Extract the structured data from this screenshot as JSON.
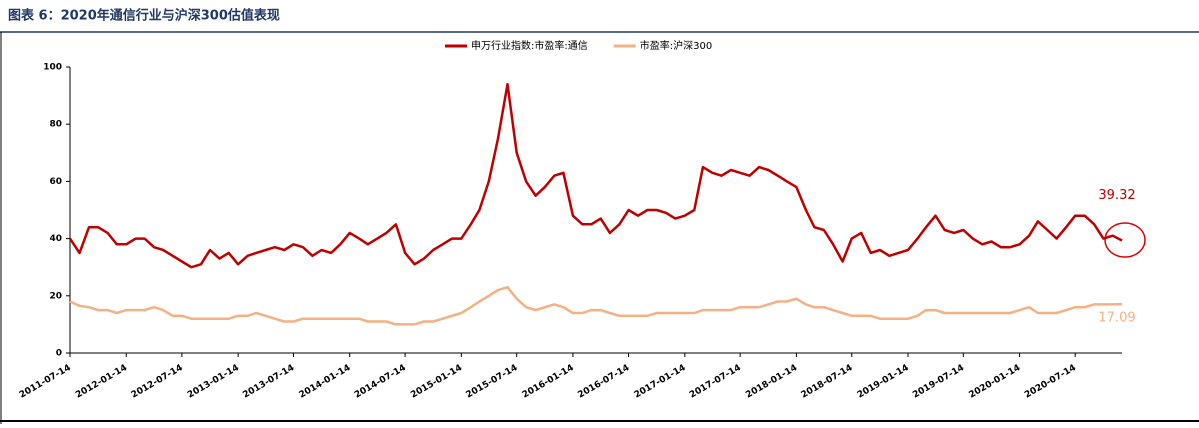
{
  "chart_data": {
    "type": "line",
    "title": "图表 6：2020年通信行业与沪深300估值表现",
    "x": [
      "2011-07-14",
      "2011-08-14",
      "2011-09-14",
      "2011-10-14",
      "2011-11-14",
      "2011-12-14",
      "2012-01-14",
      "2012-02-14",
      "2012-03-14",
      "2012-04-14",
      "2012-05-14",
      "2012-06-14",
      "2012-07-14",
      "2012-08-14",
      "2012-09-14",
      "2012-10-14",
      "2012-11-14",
      "2012-12-14",
      "2013-01-14",
      "2013-02-14",
      "2013-03-14",
      "2013-04-14",
      "2013-05-14",
      "2013-06-14",
      "2013-07-14",
      "2013-08-14",
      "2013-09-14",
      "2013-10-14",
      "2013-11-14",
      "2013-12-14",
      "2014-01-14",
      "2014-02-14",
      "2014-03-14",
      "2014-04-14",
      "2014-05-14",
      "2014-06-14",
      "2014-07-14",
      "2014-08-14",
      "2014-09-14",
      "2014-10-14",
      "2014-11-14",
      "2014-12-14",
      "2015-01-14",
      "2015-02-14",
      "2015-03-14",
      "2015-04-14",
      "2015-05-14",
      "2015-06-14",
      "2015-07-14",
      "2015-08-14",
      "2015-09-14",
      "2015-10-14",
      "2015-11-14",
      "2015-12-14",
      "2016-01-14",
      "2016-02-14",
      "2016-03-14",
      "2016-04-14",
      "2016-05-14",
      "2016-06-14",
      "2016-07-14",
      "2016-08-14",
      "2016-09-14",
      "2016-10-14",
      "2016-11-14",
      "2016-12-14",
      "2017-01-14",
      "2017-02-14",
      "2017-03-14",
      "2017-04-14",
      "2017-05-14",
      "2017-06-14",
      "2017-07-14",
      "2017-08-14",
      "2017-09-14",
      "2017-10-14",
      "2017-11-14",
      "2017-12-14",
      "2018-01-14",
      "2018-02-14",
      "2018-03-14",
      "2018-04-14",
      "2018-05-14",
      "2018-06-14",
      "2018-07-14",
      "2018-08-14",
      "2018-09-14",
      "2018-10-14",
      "2018-11-14",
      "2018-12-14",
      "2019-01-14",
      "2019-02-14",
      "2019-03-14",
      "2019-04-14",
      "2019-05-14",
      "2019-06-14",
      "2019-07-14",
      "2019-08-14",
      "2019-09-14",
      "2019-10-14",
      "2019-11-14",
      "2019-12-14",
      "2020-01-14",
      "2020-02-14",
      "2020-03-14",
      "2020-04-14",
      "2020-05-14",
      "2020-06-14",
      "2020-07-14",
      "2020-08-14",
      "2020-09-14",
      "2020-10-14",
      "2020-11-14",
      "2020-12-14"
    ],
    "series": [
      {
        "name": "申万行业指数:市盈率:通信",
        "color": "#c00000",
        "values": [
          40,
          35,
          44,
          44,
          42,
          38,
          38,
          40,
          40,
          37,
          36,
          34,
          32,
          30,
          31,
          36,
          33,
          35,
          31,
          34,
          35,
          36,
          37,
          36,
          38,
          37,
          34,
          36,
          35,
          38,
          42,
          40,
          38,
          40,
          42,
          45,
          35,
          31,
          33,
          36,
          38,
          40,
          40,
          45,
          50,
          60,
          75,
          94,
          70,
          60,
          55,
          58,
          62,
          63,
          48,
          45,
          45,
          47,
          42,
          45,
          50,
          48,
          50,
          50,
          49,
          47,
          48,
          50,
          65,
          63,
          62,
          64,
          63,
          62,
          65,
          64,
          62,
          60,
          58,
          50,
          44,
          43,
          38,
          32,
          40,
          42,
          35,
          36,
          34,
          35,
          36,
          40,
          44,
          48,
          43,
          42,
          43,
          40,
          38,
          39,
          37,
          37,
          38,
          41,
          46,
          43,
          40,
          44,
          48,
          48,
          45,
          40,
          41,
          39.32
        ]
      },
      {
        "name": "市盈率:沪深300",
        "color": "#f4b183",
        "values": [
          18,
          16.5,
          16,
          15,
          15,
          14,
          15,
          15,
          15,
          16,
          15,
          13,
          13,
          12,
          12,
          12,
          12,
          12,
          13,
          13,
          14,
          13,
          12,
          11,
          11,
          12,
          12,
          12,
          12,
          12,
          12,
          12,
          11,
          11,
          11,
          10,
          10,
          10,
          11,
          11,
          12,
          13,
          14,
          16,
          18,
          20,
          22,
          23,
          19,
          16,
          15,
          16,
          17,
          16,
          14,
          14,
          15,
          15,
          14,
          13,
          13,
          13,
          13,
          14,
          14,
          14,
          14,
          14,
          15,
          15,
          15,
          15,
          16,
          16,
          16,
          17,
          18,
          18,
          19,
          17,
          16,
          16,
          15,
          14,
          13,
          13,
          13,
          12,
          12,
          12,
          12,
          13,
          15,
          15,
          14,
          14,
          14,
          14,
          14,
          14,
          14,
          14,
          15,
          16,
          14,
          14,
          14,
          15,
          16,
          16,
          17,
          17,
          17,
          17.09
        ]
      }
    ],
    "xlim": [
      "2011-07-14",
      "2020-12-14"
    ],
    "xticks": [
      "2011-07-14",
      "2012-01-14",
      "2012-07-14",
      "2013-01-14",
      "2013-07-14",
      "2014-01-14",
      "2014-07-14",
      "2015-01-14",
      "2015-07-14",
      "2016-01-14",
      "2016-07-14",
      "2017-01-14",
      "2017-07-14",
      "2018-01-14",
      "2018-07-14",
      "2019-01-14",
      "2019-07-14",
      "2020-01-14",
      "2020-07-14"
    ],
    "ylim": [
      0,
      100
    ],
    "yticks": [
      0,
      20,
      40,
      60,
      80,
      100
    ],
    "legend": "top"
  }
}
